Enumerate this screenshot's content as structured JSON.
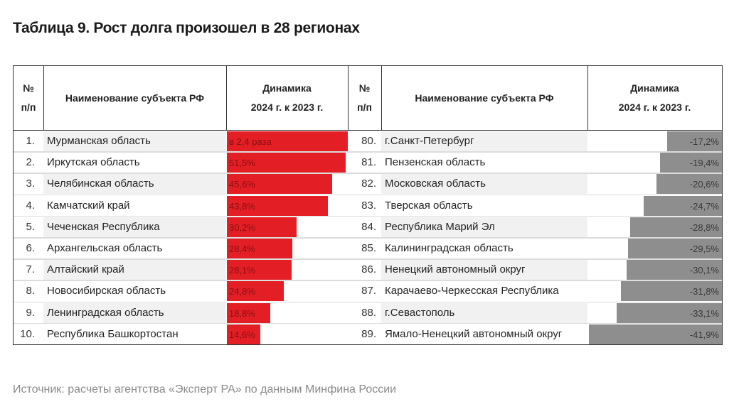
{
  "title": "Таблица 9. Рост долга произошел в 28 регионах",
  "source": "Источник: расчеты агентства «Эксперт РА» по данным Минфина России",
  "headers": {
    "num_line1": "№",
    "num_line2": "п/п",
    "name": "Наименование субъекта РФ",
    "dyn_line1": "Динамика",
    "dyn_line2": "2024 г. к 2023 г."
  },
  "colors": {
    "growth_bar": "#e31e24",
    "decline_bar": "#8e8e8e",
    "row_shade": "#f1f1f1"
  },
  "chart_data": {
    "type": "table",
    "title": "Таблица 9. Рост долга произошел в 28 регионах",
    "columns": [
      "№ п/п",
      "Наименование субъекта РФ",
      "Динамика 2024 г. к 2023 г."
    ],
    "left": [
      {
        "rank": "1.",
        "name": "Мурманская область",
        "label": "в 2,4 раза",
        "value": 140.0
      },
      {
        "rank": "2.",
        "name": "Иркутская область",
        "label": "51,5%",
        "value": 51.5
      },
      {
        "rank": "3.",
        "name": "Челябинская область",
        "label": "45,6%",
        "value": 45.6
      },
      {
        "rank": "4.",
        "name": "Камчатский край",
        "label": "43,8%",
        "value": 43.8
      },
      {
        "rank": "5.",
        "name": "Чеченская Республика",
        "label": "30,2%",
        "value": 30.2
      },
      {
        "rank": "6.",
        "name": "Архангельская область",
        "label": "28,4%",
        "value": 28.4
      },
      {
        "rank": "7.",
        "name": "Алтайский край",
        "label": "28,1%",
        "value": 28.1
      },
      {
        "rank": "8.",
        "name": "Новосибирская область",
        "label": "24,8%",
        "value": 24.8
      },
      {
        "rank": "9.",
        "name": "Ленинградская область",
        "label": "18,8%",
        "value": 18.8
      },
      {
        "rank": "10.",
        "name": "Республика Башкортостан",
        "label": "14,6%",
        "value": 14.6
      }
    ],
    "right": [
      {
        "rank": "80.",
        "name": "г.Санкт-Петербург",
        "label": "-17,2%",
        "value": -17.2
      },
      {
        "rank": "81.",
        "name": "Пензенская область",
        "label": "-19,4%",
        "value": -19.4
      },
      {
        "rank": "82.",
        "name": "Московская область",
        "label": "-20,6%",
        "value": -20.6
      },
      {
        "rank": "83.",
        "name": "Тверская область",
        "label": "-24,7%",
        "value": -24.7
      },
      {
        "rank": "84.",
        "name": "Республика Марий Эл",
        "label": "-28,8%",
        "value": -28.8
      },
      {
        "rank": "85.",
        "name": "Калининградская область",
        "label": "-29,5%",
        "value": -29.5
      },
      {
        "rank": "86.",
        "name": "Ненецкий автономный округ",
        "label": "-30,1%",
        "value": -30.1
      },
      {
        "rank": "87.",
        "name": "Карачаево-Черкесская Республика",
        "label": "-31,8%",
        "value": -31.8
      },
      {
        "rank": "88.",
        "name": "г.Севастополь",
        "label": "-33,1%",
        "value": -33.1
      },
      {
        "rank": "89.",
        "name": "Ямало-Ненецкий автономный округ",
        "label": "-41,9%",
        "value": -41.9
      }
    ]
  }
}
